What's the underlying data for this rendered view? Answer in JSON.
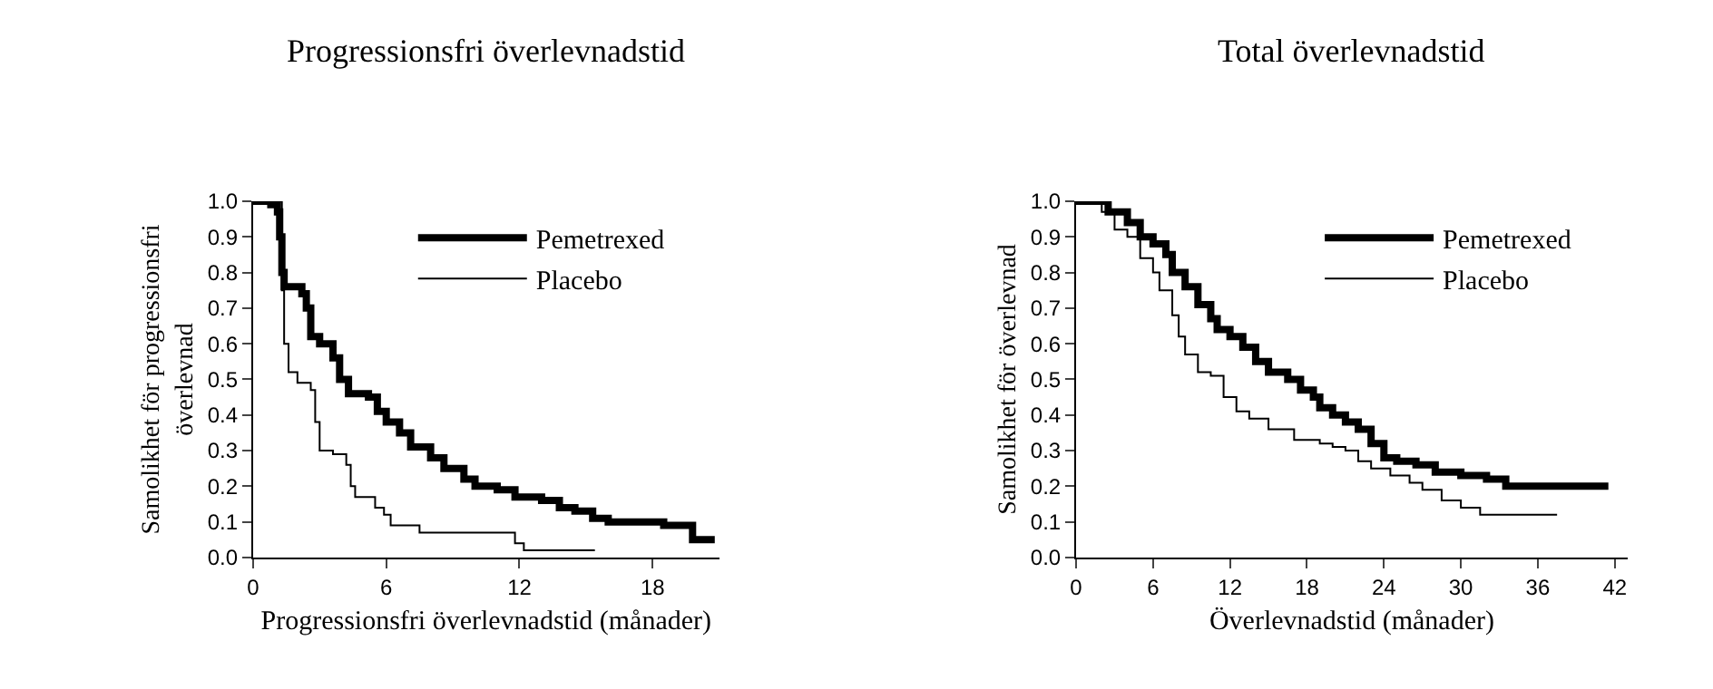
{
  "chart_data": [
    {
      "type": "step",
      "title": "Progressionsfri överlevnadstid",
      "xlabel": "Progressionsfri överlevnadstid (månader)",
      "ylabel": "Samolikhet för progressionsfri\növerlevnad",
      "xlim": [
        0,
        21
      ],
      "xticks": [
        0,
        6,
        12,
        18
      ],
      "ylim": [
        0,
        1.0
      ],
      "yticks": [
        {
          "value": 0,
          "label": "0.0"
        },
        {
          "value": 0.1,
          "label": "0.1"
        },
        {
          "value": 0.2,
          "label": "0.2"
        },
        {
          "value": 0.3,
          "label": "0.3"
        },
        {
          "value": 0.4,
          "label": "0.4"
        },
        {
          "value": 0.5,
          "label": "0.5"
        },
        {
          "value": 0.6,
          "label": "0.6"
        },
        {
          "value": 0.7,
          "label": "0.7"
        },
        {
          "value": 0.8,
          "label": "0.8"
        },
        {
          "value": 0.9,
          "label": "0.9"
        },
        {
          "value": 1.0,
          "label": "1.0"
        }
      ],
      "legend": "top right",
      "marker": "none",
      "series": [
        {
          "name": "Pemetrexed",
          "color": "#000000",
          "x": [
            0,
            0.8,
            1.1,
            1.2,
            1.3,
            1.4,
            2.2,
            2.4,
            2.6,
            3.0,
            3.6,
            3.9,
            4.3,
            5.2,
            5.6,
            6.0,
            6.6,
            7.1,
            8.0,
            8.6,
            9.5,
            10.0,
            11.0,
            11.8,
            13.0,
            13.8,
            14.5,
            15.3,
            16.0,
            18.5,
            19.8,
            20.8
          ],
          "values": [
            1.0,
            0.99,
            0.97,
            0.9,
            0.8,
            0.76,
            0.74,
            0.7,
            0.62,
            0.6,
            0.56,
            0.5,
            0.46,
            0.45,
            0.41,
            0.38,
            0.35,
            0.31,
            0.28,
            0.25,
            0.22,
            0.2,
            0.19,
            0.17,
            0.16,
            0.14,
            0.13,
            0.11,
            0.1,
            0.09,
            0.05,
            0.05
          ]
        },
        {
          "name": "Placebo",
          "color": "#000000",
          "x": [
            0,
            1.3,
            1.4,
            1.6,
            2.0,
            2.6,
            2.8,
            3.0,
            3.6,
            4.2,
            4.4,
            4.6,
            5.5,
            5.9,
            6.2,
            7.5,
            11.8,
            12.2,
            15.4
          ],
          "values": [
            1.0,
            0.75,
            0.6,
            0.52,
            0.49,
            0.47,
            0.38,
            0.3,
            0.29,
            0.26,
            0.2,
            0.17,
            0.14,
            0.12,
            0.09,
            0.07,
            0.04,
            0.02,
            0.02
          ]
        }
      ]
    },
    {
      "type": "step",
      "title": "Total överlevnadstid",
      "xlabel": "Överlevnadstid (månader)",
      "ylabel": "Samolikhet för överlevnad",
      "xlim": [
        0,
        43
      ],
      "xticks": [
        0,
        6,
        12,
        18,
        24,
        30,
        36,
        42
      ],
      "ylim": [
        0,
        1.0
      ],
      "yticks": [
        {
          "value": 0,
          "label": "0.0"
        },
        {
          "value": 0.1,
          "label": "0.1"
        },
        {
          "value": 0.2,
          "label": "0.2"
        },
        {
          "value": 0.3,
          "label": "0.3"
        },
        {
          "value": 0.4,
          "label": "0.4"
        },
        {
          "value": 0.5,
          "label": "0.5"
        },
        {
          "value": 0.6,
          "label": "0.6"
        },
        {
          "value": 0.7,
          "label": "0.7"
        },
        {
          "value": 0.8,
          "label": "0.8"
        },
        {
          "value": 0.9,
          "label": "0.9"
        },
        {
          "value": 1.0,
          "label": "1.0"
        }
      ],
      "legend": "top right",
      "marker": "none",
      "series": [
        {
          "name": "Pemetrexed",
          "color": "#000000",
          "x": [
            0,
            1.5,
            2.5,
            4,
            5,
            6,
            7,
            7.5,
            8.5,
            9.5,
            10.5,
            11,
            12,
            13,
            14,
            15,
            16.5,
            17.5,
            18.5,
            19,
            20,
            21,
            22,
            23,
            24,
            25,
            26.5,
            28,
            30,
            32,
            33.5,
            41.5
          ],
          "values": [
            1.0,
            1.0,
            0.97,
            0.94,
            0.9,
            0.88,
            0.85,
            0.8,
            0.76,
            0.71,
            0.67,
            0.64,
            0.62,
            0.59,
            0.55,
            0.52,
            0.5,
            0.47,
            0.45,
            0.42,
            0.4,
            0.38,
            0.36,
            0.32,
            0.28,
            0.27,
            0.26,
            0.24,
            0.23,
            0.22,
            0.2,
            0.2
          ]
        },
        {
          "name": "Placebo",
          "color": "#000000",
          "x": [
            0,
            2,
            3,
            4,
            5,
            6,
            6.5,
            7.5,
            8,
            8.5,
            9.5,
            10.5,
            11.5,
            12.5,
            13.5,
            15,
            17,
            19,
            20,
            21,
            22,
            23,
            24.5,
            26,
            27,
            28.5,
            30,
            31.5,
            37.5
          ],
          "values": [
            1.0,
            0.97,
            0.92,
            0.9,
            0.84,
            0.8,
            0.75,
            0.68,
            0.62,
            0.57,
            0.52,
            0.51,
            0.45,
            0.41,
            0.39,
            0.36,
            0.33,
            0.32,
            0.31,
            0.3,
            0.27,
            0.25,
            0.23,
            0.21,
            0.19,
            0.16,
            0.14,
            0.12,
            0.12
          ]
        }
      ]
    }
  ]
}
